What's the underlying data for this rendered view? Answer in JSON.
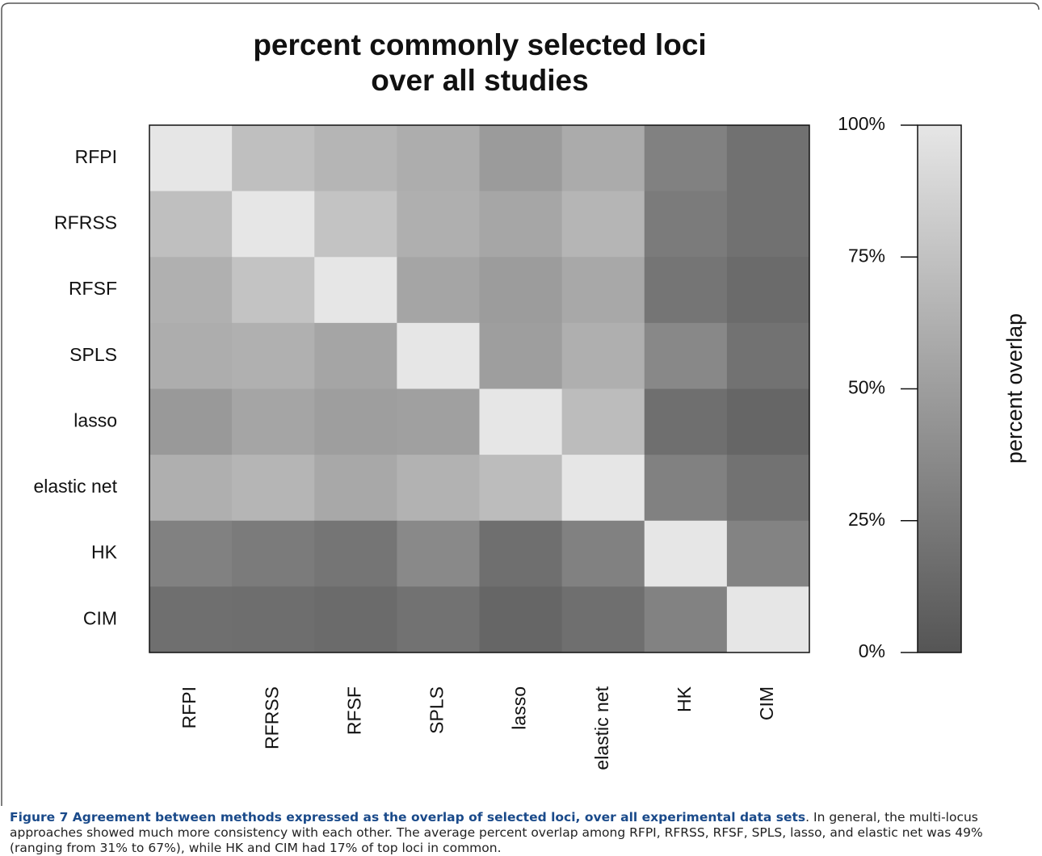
{
  "chart_data": {
    "type": "heatmap",
    "title": [
      "percent commonly selected loci",
      "over all studies"
    ],
    "y_categories": [
      "RFPI",
      "RFRSS",
      "RFSF",
      "SPLS",
      "lasso",
      "elastic net",
      "HK",
      "CIM"
    ],
    "x_categories": [
      "RFPI",
      "RFRSS",
      "RFSF",
      "SPLS",
      "lasso",
      "elastic net",
      "HK",
      "CIM"
    ],
    "values": [
      [
        100,
        73,
        66,
        61,
        48,
        59,
        30,
        19
      ],
      [
        73,
        100,
        76,
        62,
        56,
        66,
        26,
        19
      ],
      [
        63,
        76,
        100,
        55,
        49,
        57,
        22,
        15
      ],
      [
        61,
        63,
        55,
        100,
        50,
        62,
        35,
        20
      ],
      [
        47,
        55,
        50,
        52,
        100,
        71,
        18,
        12
      ],
      [
        62,
        66,
        57,
        64,
        71,
        100,
        30,
        20
      ],
      [
        30,
        26,
        22,
        36,
        18,
        30,
        100,
        32
      ],
      [
        18,
        17,
        15,
        20,
        12,
        18,
        31,
        100
      ]
    ],
    "colorbar": {
      "label": "percent overlap",
      "lim": [
        0,
        100
      ],
      "ticks": [
        {
          "value": 0,
          "label": "0%"
        },
        {
          "value": 25,
          "label": "25%"
        },
        {
          "value": 50,
          "label": "50%"
        },
        {
          "value": 75,
          "label": "75%"
        },
        {
          "value": 100,
          "label": "100%"
        }
      ],
      "low_color": "#555555",
      "high_color": "#e6e6e6"
    }
  },
  "caption": {
    "heading": "Figure 7 Agreement between methods expressed as the overlap of selected loci, over all experimental data sets",
    "text": ". In general, the multi-locus approaches showed much more consistency with each other. The average percent overlap among RFPI, RFRSS, RFSF, SPLS, lasso, and elastic net was 49% (ranging from 31% to 67%), while HK and CIM had 17% of top loci in common."
  }
}
